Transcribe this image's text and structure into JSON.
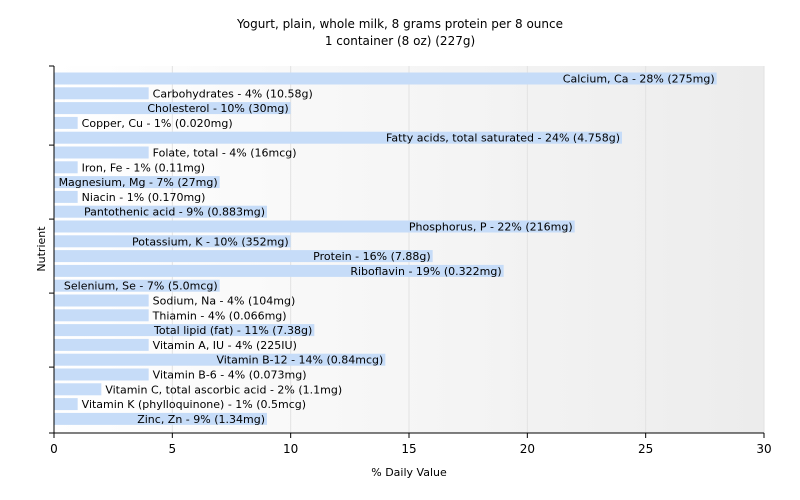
{
  "chart_data": {
    "type": "bar",
    "orientation": "horizontal",
    "title": "Yogurt, plain, whole milk, 8 grams protein per 8 ounce",
    "subtitle": "1 container (8 oz) (227g)",
    "xlabel": "% Daily Value",
    "ylabel": "Nutrient",
    "xlim": [
      0,
      30
    ],
    "xticks": [
      0,
      5,
      10,
      15,
      20,
      25,
      30
    ],
    "grid": true,
    "bar_color": "#c6dcf8",
    "categories": [
      "Calcium, Ca",
      "Carbohydrates",
      "Cholesterol",
      "Copper, Cu",
      "Fatty acids, total saturated",
      "Folate, total",
      "Iron, Fe",
      "Magnesium, Mg",
      "Niacin",
      "Pantothenic acid",
      "Phosphorus, P",
      "Potassium, K",
      "Protein",
      "Riboflavin",
      "Selenium, Se",
      "Sodium, Na",
      "Thiamin",
      "Total lipid (fat)",
      "Vitamin A, IU",
      "Vitamin B-12",
      "Vitamin B-6",
      "Vitamin C, total ascorbic acid",
      "Vitamin K (phylloquinone)",
      "Zinc, Zn"
    ],
    "values": [
      28,
      4,
      10,
      1,
      24,
      4,
      1,
      7,
      1,
      9,
      22,
      10,
      16,
      19,
      7,
      4,
      4,
      11,
      4,
      14,
      4,
      2,
      1,
      9
    ],
    "labels": [
      "Calcium, Ca - 28% (275mg)",
      "Carbohydrates - 4% (10.58g)",
      "Cholesterol - 10% (30mg)",
      "Copper, Cu - 1% (0.020mg)",
      "Fatty acids, total saturated - 24% (4.758g)",
      "Folate, total - 4% (16mcg)",
      "Iron, Fe - 1% (0.11mg)",
      "Magnesium, Mg - 7% (27mg)",
      "Niacin - 1% (0.170mg)",
      "Pantothenic acid - 9% (0.883mg)",
      "Phosphorus, P - 22% (216mg)",
      "Potassium, K - 10% (352mg)",
      "Protein - 16% (7.88g)",
      "Riboflavin - 19% (0.322mg)",
      "Selenium, Se - 7% (5.0mcg)",
      "Sodium, Na - 4% (104mg)",
      "Thiamin - 4% (0.066mg)",
      "Total lipid (fat) - 11% (7.38g)",
      "Vitamin A, IU - 4% (225IU)",
      "Vitamin B-12 - 14% (0.84mcg)",
      "Vitamin B-6 - 4% (0.073mg)",
      "Vitamin C, total ascorbic acid - 2% (1.1mg)",
      "Vitamin K (phylloquinone) - 1% (0.5mcg)",
      "Zinc, Zn - 9% (1.34mg)"
    ]
  }
}
